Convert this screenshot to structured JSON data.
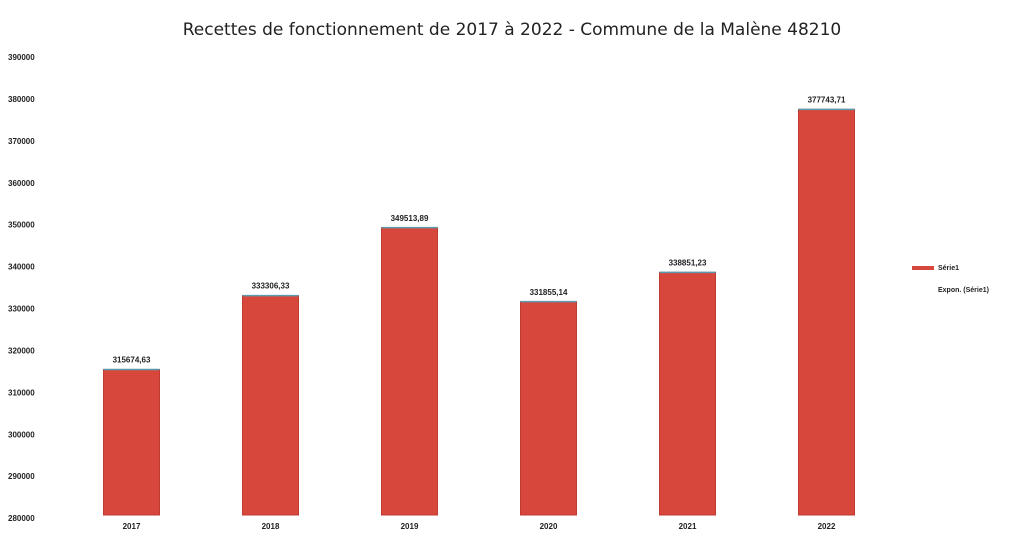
{
  "chart_data": {
    "type": "bar",
    "title": "Recettes de fonctionnement de 2017 à 2022 - Commune de la Malène 48210",
    "categories": [
      "2017",
      "2018",
      "2019",
      "2020",
      "2021",
      "2022"
    ],
    "series": [
      {
        "name": "Série1",
        "color": "#d8473b",
        "values": [
          315674.63,
          333306.33,
          349513.89,
          331855.14,
          338851.23,
          377743.71
        ],
        "value_labels": [
          "315674,63",
          "333306,33",
          "349513,89",
          "331855,14",
          "338851,23",
          "377743,71"
        ]
      }
    ],
    "trendline": {
      "name": "Expon. (Série1)"
    },
    "ylim": [
      280000,
      390000
    ],
    "yticks": [
      280000,
      290000,
      300000,
      310000,
      320000,
      330000,
      340000,
      350000,
      360000,
      370000,
      380000,
      390000
    ],
    "legend": "right"
  }
}
